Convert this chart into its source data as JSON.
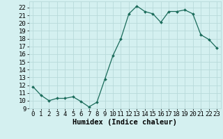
{
  "x": [
    0,
    1,
    2,
    3,
    4,
    5,
    6,
    7,
    8,
    9,
    10,
    11,
    12,
    13,
    14,
    15,
    16,
    17,
    18,
    19,
    20,
    21,
    22,
    23
  ],
  "y": [
    11.8,
    10.7,
    10.0,
    10.3,
    10.3,
    10.5,
    9.9,
    9.2,
    9.8,
    12.8,
    15.8,
    18.0,
    21.2,
    22.2,
    21.5,
    21.2,
    20.1,
    21.5,
    21.5,
    21.7,
    21.2,
    18.5,
    17.9,
    16.8
  ],
  "line_color": "#1a6b5a",
  "marker": "D",
  "marker_size": 2.0,
  "bg_color": "#d4f0f0",
  "grid_color": "#b8dada",
  "xlabel": "Humidex (Indice chaleur)",
  "xlim": [
    -0.5,
    23.5
  ],
  "ylim": [
    9.0,
    22.8
  ],
  "yticks": [
    9,
    10,
    11,
    12,
    13,
    14,
    15,
    16,
    17,
    18,
    19,
    20,
    21,
    22
  ],
  "xticks": [
    0,
    1,
    2,
    3,
    4,
    5,
    6,
    7,
    8,
    9,
    10,
    11,
    12,
    13,
    14,
    15,
    16,
    17,
    18,
    19,
    20,
    21,
    22,
    23
  ],
  "xlabel_fontsize": 7.5,
  "tick_fontsize": 6.5
}
